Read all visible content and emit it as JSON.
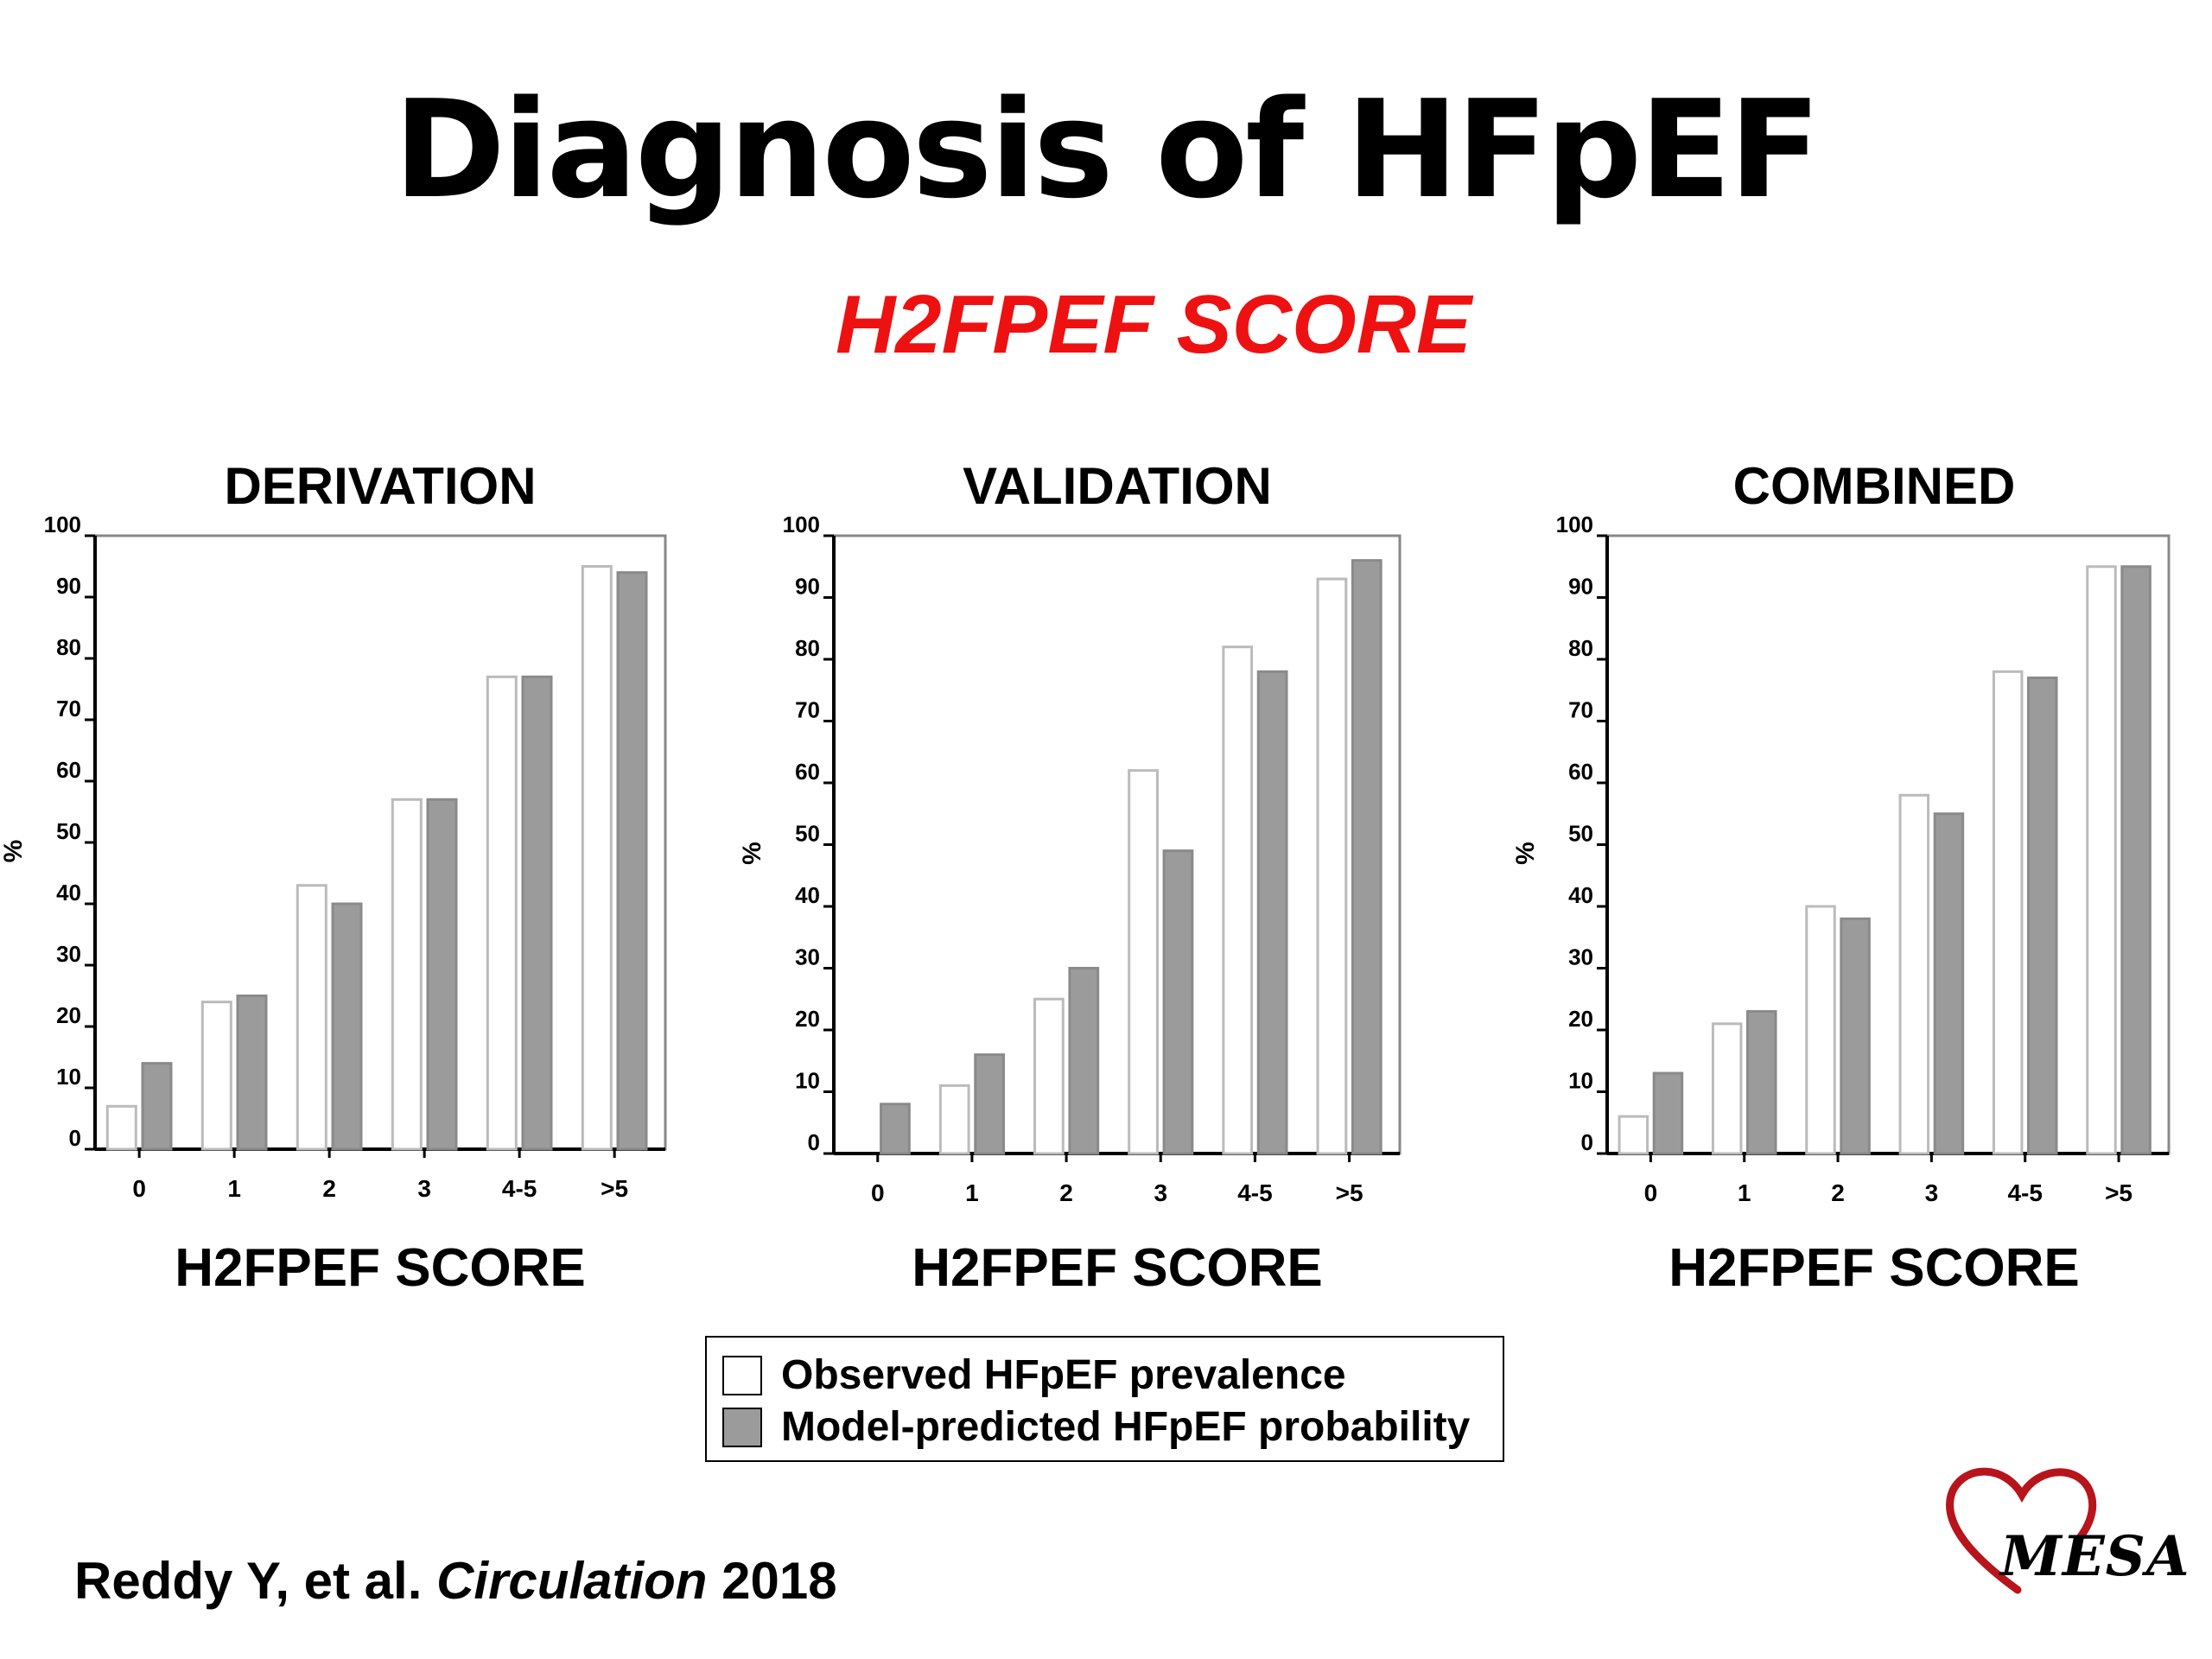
{
  "title": "Diagnosis of HFpEF",
  "subtitle": "H2FPEF SCORE",
  "legend": {
    "observed": "Observed HFpEF prevalence",
    "predicted": "Model-predicted HFpEF probability"
  },
  "citation": {
    "authors": "Reddy Y, et al.",
    "journal": "Circulation",
    "year": "2018"
  },
  "logo": {
    "text": "MESA",
    "heart_color": "#b8141c"
  },
  "colors": {
    "observed": "#ffffff",
    "predicted": "#9b9b9b",
    "subtitle": "#ee1111"
  },
  "chart_data": [
    {
      "type": "bar",
      "title": "DERIVATION",
      "xlabel": "H2FPEF SCORE",
      "ylabel": "%",
      "ylim": [
        0,
        100
      ],
      "yticks": [
        "0",
        "10",
        "20",
        "30",
        "40",
        "50",
        "60",
        "70",
        "80",
        "90",
        "100"
      ],
      "categories": [
        "0",
        "1",
        "2",
        "3",
        "4-5",
        ">5"
      ],
      "series": [
        {
          "name": "Observed HFpEF prevalence",
          "values": [
            7,
            24,
            43,
            57,
            77,
            95
          ]
        },
        {
          "name": "Model-predicted HFpEF probability",
          "values": [
            14,
            25,
            40,
            57,
            77,
            94
          ]
        }
      ]
    },
    {
      "type": "bar",
      "title": "VALIDATION",
      "xlabel": "H2FPEF SCORE",
      "ylabel": "%",
      "ylim": [
        0,
        100
      ],
      "yticks": [
        "0",
        "10",
        "20",
        "30",
        "40",
        "50",
        "60",
        "70",
        "80",
        "90",
        "100"
      ],
      "categories": [
        "0",
        "1",
        "2",
        "3",
        "4-5",
        ">5"
      ],
      "series": [
        {
          "name": "Observed HFpEF prevalence",
          "values": [
            0,
            11,
            25,
            62,
            82,
            93
          ]
        },
        {
          "name": "Model-predicted HFpEF probability",
          "values": [
            8,
            16,
            30,
            49,
            78,
            96
          ]
        }
      ]
    },
    {
      "type": "bar",
      "title": "COMBINED",
      "xlabel": "H2FPEF SCORE",
      "ylabel": "%",
      "ylim": [
        0,
        100
      ],
      "yticks": [
        "0",
        "10",
        "20",
        "30",
        "40",
        "50",
        "60",
        "70",
        "80",
        "90",
        "100"
      ],
      "categories": [
        "0",
        "1",
        "2",
        "3",
        "4-5",
        ">5"
      ],
      "series": [
        {
          "name": "Observed HFpEF prevalence",
          "values": [
            6,
            21,
            40,
            58,
            78,
            95
          ]
        },
        {
          "name": "Model-predicted HFpEF probability",
          "values": [
            13,
            23,
            38,
            55,
            77,
            95
          ]
        }
      ]
    }
  ]
}
